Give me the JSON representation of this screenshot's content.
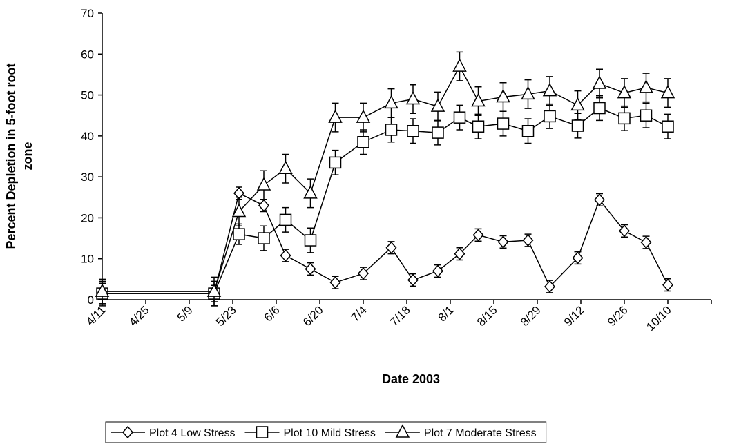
{
  "chart_data": {
    "type": "line",
    "xlabel": "Date 2003",
    "ylabel": [
      "Percent Depletion in 5-foot root",
      "zone"
    ],
    "x": [
      "4/11",
      "5/17",
      "5/25",
      "6/2",
      "6/9",
      "6/17",
      "6/25",
      "7/4",
      "7/13",
      "7/20",
      "7/28",
      "8/4",
      "8/10",
      "8/18",
      "8/26",
      "9/2",
      "9/11",
      "9/18",
      "9/26",
      "10/3",
      "10/10"
    ],
    "xlim": [
      "4/11",
      "10/24"
    ],
    "xticks": [
      "4/11",
      "4/25",
      "5/9",
      "5/23",
      "6/6",
      "6/20",
      "7/4",
      "7/18",
      "8/1",
      "8/15",
      "8/29",
      "9/12",
      "9/26",
      "10/10"
    ],
    "ylim": [
      0,
      70
    ],
    "yticks": [
      0,
      10,
      20,
      30,
      40,
      50,
      60,
      70
    ],
    "grid": false,
    "legend": "bottom",
    "series": [
      {
        "name": "Plot 4 Low Stress",
        "color": "#000000",
        "marker": "diamond",
        "values": [
          1.5,
          1.5,
          26,
          23,
          10.8,
          7.5,
          4.2,
          6.4,
          12.7,
          4.8,
          7,
          11.2,
          15.8,
          14.1,
          14.5,
          3.2,
          10.2,
          24.4,
          16.8,
          14,
          3.6
        ],
        "errors": [
          2.5,
          2,
          1.5,
          1.5,
          1.5,
          1.5,
          1.5,
          1.5,
          1.5,
          1.5,
          1.5,
          1.5,
          1.5,
          1.5,
          1.5,
          1.5,
          1.5,
          1.5,
          1.5,
          1.5,
          1.5
        ]
      },
      {
        "name": "Plot 10 Mild Stress",
        "color": "#000000",
        "marker": "square",
        "values": [
          1.5,
          1.5,
          16,
          15,
          19.5,
          14.5,
          33.5,
          38.5,
          41.5,
          41.2,
          40.8,
          44.5,
          42.3,
          43,
          41.2,
          44.8,
          42.5,
          46.8,
          44.3,
          45,
          42.3
        ],
        "errors": [
          3,
          3,
          2.5,
          3,
          3,
          3,
          3,
          3,
          3,
          3,
          3,
          3,
          3,
          3,
          3,
          3,
          3,
          3,
          3,
          3,
          3
        ]
      },
      {
        "name": "Plot 7 Moderate Stress",
        "color": "#000000",
        "marker": "triangle",
        "values": [
          2,
          2,
          21.5,
          28,
          32,
          26,
          44.5,
          44.5,
          48,
          49,
          47.2,
          57,
          48.5,
          49.5,
          50.2,
          51,
          47.5,
          52.8,
          50.5,
          51.8,
          50.5
        ],
        "errors": [
          3,
          3.5,
          3.5,
          3.5,
          3.5,
          3.5,
          3.5,
          3.5,
          3.5,
          3.5,
          3.5,
          3.5,
          3.5,
          3.5,
          3.5,
          3.5,
          3.5,
          3.5,
          3.5,
          3.5,
          3.5
        ]
      }
    ]
  }
}
